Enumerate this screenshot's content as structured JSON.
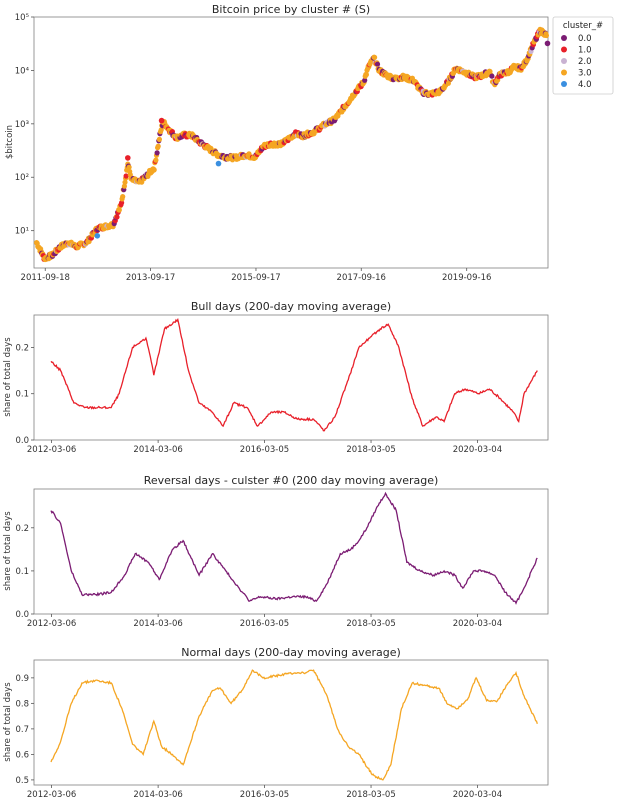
{
  "chart_data": [
    {
      "type": "scatter",
      "title": "Bitcoin price by cluster # (S)",
      "ylabel": "$bitcoin",
      "yscale": "log",
      "ylim": [
        2,
        100000
      ],
      "ytick_labels": [
        "10¹",
        "10²",
        "10³",
        "10⁴",
        "10⁵"
      ],
      "xtick_labels": [
        "2011-09-18",
        "2013-09-17",
        "2015-09-17",
        "2017-09-16",
        "2019-09-16"
      ],
      "xlim": [
        2011.5,
        2021.25
      ],
      "legend": {
        "title": "cluster_#",
        "placement": "outside-right-top",
        "entries": [
          {
            "label": "0.0",
            "color": "#7b1c73"
          },
          {
            "label": "1.0",
            "color": "#e8202a"
          },
          {
            "label": "2.0",
            "color": "#c9b2d2"
          },
          {
            "label": "3.0",
            "color": "#f5a623"
          },
          {
            "label": "4.0",
            "color": "#3a8fe0"
          }
        ]
      },
      "series_price": [
        [
          2011.55,
          6
        ],
        [
          2011.7,
          3
        ],
        [
          2011.85,
          3.5
        ],
        [
          2012.0,
          5
        ],
        [
          2012.15,
          6
        ],
        [
          2012.3,
          5
        ],
        [
          2012.5,
          6
        ],
        [
          2012.7,
          11
        ],
        [
          2012.85,
          12
        ],
        [
          2013.0,
          13
        ],
        [
          2013.15,
          30
        ],
        [
          2013.28,
          180
        ],
        [
          2013.35,
          90
        ],
        [
          2013.5,
          80
        ],
        [
          2013.65,
          110
        ],
        [
          2013.78,
          150
        ],
        [
          2013.9,
          700
        ],
        [
          2013.95,
          1100
        ],
        [
          2014.05,
          800
        ],
        [
          2014.2,
          550
        ],
        [
          2014.35,
          620
        ],
        [
          2014.5,
          600
        ],
        [
          2014.65,
          450
        ],
        [
          2014.8,
          350
        ],
        [
          2015.0,
          260
        ],
        [
          2015.15,
          240
        ],
        [
          2015.3,
          230
        ],
        [
          2015.5,
          260
        ],
        [
          2015.7,
          240
        ],
        [
          2015.85,
          380
        ],
        [
          2016.0,
          420
        ],
        [
          2016.2,
          420
        ],
        [
          2016.45,
          650
        ],
        [
          2016.6,
          600
        ],
        [
          2016.8,
          700
        ],
        [
          2017.0,
          950
        ],
        [
          2017.2,
          1200
        ],
        [
          2017.45,
          2500
        ],
        [
          2017.6,
          4000
        ],
        [
          2017.75,
          6000
        ],
        [
          2017.85,
          12000
        ],
        [
          2017.95,
          17000
        ],
        [
          2018.05,
          10000
        ],
        [
          2018.2,
          8000
        ],
        [
          2018.35,
          7000
        ],
        [
          2018.5,
          7500
        ],
        [
          2018.7,
          6500
        ],
        [
          2018.85,
          4000
        ],
        [
          2019.0,
          3600
        ],
        [
          2019.2,
          4000
        ],
        [
          2019.35,
          6000
        ],
        [
          2019.5,
          11000
        ],
        [
          2019.7,
          9000
        ],
        [
          2019.85,
          7500
        ],
        [
          2020.0,
          8000
        ],
        [
          2020.15,
          9500
        ],
        [
          2020.22,
          5500
        ],
        [
          2020.35,
          8500
        ],
        [
          2020.5,
          9300
        ],
        [
          2020.6,
          11500
        ],
        [
          2020.75,
          11000
        ],
        [
          2020.85,
          16000
        ],
        [
          2020.95,
          28000
        ],
        [
          2021.03,
          40000
        ],
        [
          2021.1,
          55000
        ],
        [
          2021.18,
          50000
        ],
        [
          2021.22,
          45000
        ]
      ],
      "highlighted_points": [
        {
          "cluster": "1.0",
          "x": 2013.28,
          "y": 230
        },
        {
          "cluster": "1.0",
          "x": 2013.92,
          "y": 1150
        },
        {
          "cluster": "0.0",
          "x": 2021.24,
          "y": 32000
        },
        {
          "cluster": "4.0",
          "x": 2015.0,
          "y": 180
        },
        {
          "cluster": "4.0",
          "x": 2012.7,
          "y": 8
        }
      ]
    },
    {
      "type": "line",
      "title": "Bull days (200-day moving average)",
      "ylabel": "share of total days",
      "color": "#e8202a",
      "ylim": [
        0.0,
        0.27
      ],
      "yticks": [
        0.0,
        0.1,
        0.2
      ],
      "ytick_labels": [
        "0.0",
        "0.1",
        "0.2"
      ],
      "xlim": [
        2011.85,
        2021.5
      ],
      "xtick_labels": [
        "2012-03-06",
        "2014-03-06",
        "2016-03-05",
        "2018-03-05",
        "2020-03-04"
      ],
      "series": [
        [
          2012.17,
          0.17
        ],
        [
          2012.35,
          0.15
        ],
        [
          2012.6,
          0.08
        ],
        [
          2012.8,
          0.07
        ],
        [
          2013.1,
          0.07
        ],
        [
          2013.3,
          0.07
        ],
        [
          2013.45,
          0.1
        ],
        [
          2013.7,
          0.2
        ],
        [
          2013.95,
          0.22
        ],
        [
          2014.05,
          0.17
        ],
        [
          2014.1,
          0.14
        ],
        [
          2014.3,
          0.24
        ],
        [
          2014.55,
          0.26
        ],
        [
          2014.75,
          0.15
        ],
        [
          2014.95,
          0.08
        ],
        [
          2015.2,
          0.06
        ],
        [
          2015.4,
          0.03
        ],
        [
          2015.6,
          0.08
        ],
        [
          2015.85,
          0.07
        ],
        [
          2016.05,
          0.03
        ],
        [
          2016.3,
          0.06
        ],
        [
          2016.55,
          0.06
        ],
        [
          2016.8,
          0.045
        ],
        [
          2017.1,
          0.045
        ],
        [
          2017.3,
          0.02
        ],
        [
          2017.5,
          0.05
        ],
        [
          2017.75,
          0.13
        ],
        [
          2017.95,
          0.2
        ],
        [
          2018.15,
          0.22
        ],
        [
          2018.35,
          0.24
        ],
        [
          2018.5,
          0.25
        ],
        [
          2018.7,
          0.2
        ],
        [
          2018.95,
          0.09
        ],
        [
          2019.15,
          0.03
        ],
        [
          2019.4,
          0.05
        ],
        [
          2019.55,
          0.04
        ],
        [
          2019.75,
          0.1
        ],
        [
          2019.95,
          0.11
        ],
        [
          2020.2,
          0.1
        ],
        [
          2020.4,
          0.11
        ],
        [
          2020.6,
          0.09
        ],
        [
          2020.85,
          0.06
        ],
        [
          2020.95,
          0.04
        ],
        [
          2021.05,
          0.1
        ],
        [
          2021.3,
          0.15
        ]
      ]
    },
    {
      "type": "line",
      "title": "Reversal days - culster #0 (200 day moving average)",
      "ylabel": "share of total days",
      "color": "#7b1c73",
      "ylim": [
        0.0,
        0.29
      ],
      "yticks": [
        0.0,
        0.1,
        0.2
      ],
      "ytick_labels": [
        "0.0",
        "0.1",
        "0.2"
      ],
      "xlim": [
        2011.85,
        2021.5
      ],
      "xtick_labels": [
        "2012-03-06",
        "2014-03-06",
        "2016-03-05",
        "2018-03-05",
        "2020-03-04"
      ],
      "series": [
        [
          2012.17,
          0.24
        ],
        [
          2012.35,
          0.21
        ],
        [
          2012.55,
          0.1
        ],
        [
          2012.75,
          0.045
        ],
        [
          2013.0,
          0.045
        ],
        [
          2013.3,
          0.05
        ],
        [
          2013.55,
          0.09
        ],
        [
          2013.75,
          0.14
        ],
        [
          2014.0,
          0.12
        ],
        [
          2014.2,
          0.08
        ],
        [
          2014.45,
          0.15
        ],
        [
          2014.65,
          0.17
        ],
        [
          2014.8,
          0.13
        ],
        [
          2014.95,
          0.09
        ],
        [
          2015.2,
          0.14
        ],
        [
          2015.45,
          0.1
        ],
        [
          2015.7,
          0.06
        ],
        [
          2015.9,
          0.03
        ],
        [
          2016.1,
          0.04
        ],
        [
          2016.4,
          0.035
        ],
        [
          2016.7,
          0.04
        ],
        [
          2016.95,
          0.04
        ],
        [
          2017.15,
          0.03
        ],
        [
          2017.35,
          0.07
        ],
        [
          2017.6,
          0.14
        ],
        [
          2017.8,
          0.15
        ],
        [
          2017.95,
          0.17
        ],
        [
          2018.1,
          0.2
        ],
        [
          2018.3,
          0.25
        ],
        [
          2018.45,
          0.28
        ],
        [
          2018.65,
          0.24
        ],
        [
          2018.85,
          0.12
        ],
        [
          2019.1,
          0.1
        ],
        [
          2019.35,
          0.09
        ],
        [
          2019.55,
          0.1
        ],
        [
          2019.75,
          0.09
        ],
        [
          2019.9,
          0.06
        ],
        [
          2020.1,
          0.1
        ],
        [
          2020.3,
          0.1
        ],
        [
          2020.5,
          0.09
        ],
        [
          2020.7,
          0.05
        ],
        [
          2020.9,
          0.025
        ],
        [
          2021.05,
          0.06
        ],
        [
          2021.3,
          0.13
        ]
      ]
    },
    {
      "type": "line",
      "title": "Normal days (200-day moving average)",
      "ylabel": "share of total days",
      "color": "#f5a623",
      "ylim": [
        0.48,
        0.97
      ],
      "yticks": [
        0.5,
        0.6,
        0.7,
        0.8,
        0.9
      ],
      "ytick_labels": [
        "0.5",
        "0.6",
        "0.7",
        "0.8",
        "0.9"
      ],
      "xlim": [
        2011.85,
        2021.5
      ],
      "xtick_labels": [
        "2012-03-06",
        "2014-03-06",
        "2016-03-05",
        "2018-03-05",
        "2020-03-04"
      ],
      "series": [
        [
          2012.17,
          0.57
        ],
        [
          2012.35,
          0.65
        ],
        [
          2012.55,
          0.8
        ],
        [
          2012.75,
          0.88
        ],
        [
          2013.0,
          0.89
        ],
        [
          2013.3,
          0.88
        ],
        [
          2013.5,
          0.78
        ],
        [
          2013.7,
          0.64
        ],
        [
          2013.9,
          0.6
        ],
        [
          2014.1,
          0.73
        ],
        [
          2014.25,
          0.63
        ],
        [
          2014.45,
          0.6
        ],
        [
          2014.65,
          0.56
        ],
        [
          2014.95,
          0.75
        ],
        [
          2015.2,
          0.85
        ],
        [
          2015.35,
          0.86
        ],
        [
          2015.55,
          0.8
        ],
        [
          2015.75,
          0.85
        ],
        [
          2015.95,
          0.93
        ],
        [
          2016.15,
          0.9
        ],
        [
          2016.45,
          0.91
        ],
        [
          2016.75,
          0.92
        ],
        [
          2016.95,
          0.92
        ],
        [
          2017.1,
          0.93
        ],
        [
          2017.35,
          0.83
        ],
        [
          2017.55,
          0.7
        ],
        [
          2017.75,
          0.63
        ],
        [
          2017.95,
          0.6
        ],
        [
          2018.2,
          0.52
        ],
        [
          2018.4,
          0.5
        ],
        [
          2018.55,
          0.56
        ],
        [
          2018.75,
          0.78
        ],
        [
          2018.95,
          0.88
        ],
        [
          2019.2,
          0.87
        ],
        [
          2019.45,
          0.86
        ],
        [
          2019.6,
          0.8
        ],
        [
          2019.8,
          0.78
        ],
        [
          2020.0,
          0.82
        ],
        [
          2020.15,
          0.9
        ],
        [
          2020.35,
          0.81
        ],
        [
          2020.55,
          0.81
        ],
        [
          2020.75,
          0.88
        ],
        [
          2020.9,
          0.92
        ],
        [
          2021.05,
          0.83
        ],
        [
          2021.3,
          0.72
        ]
      ]
    }
  ]
}
